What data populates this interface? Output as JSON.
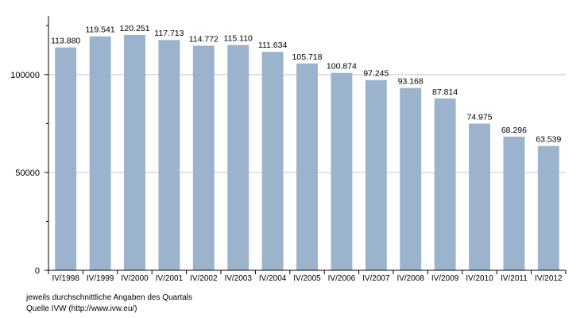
{
  "chart_data": {
    "type": "bar",
    "categories": [
      "IV/1998",
      "IV/1999",
      "IV/2000",
      "IV/2001",
      "IV/2002",
      "IV/2003",
      "IV/2004",
      "IV/2005",
      "IV/2006",
      "IV/2007",
      "IV/2008",
      "IV/2009",
      "IV/2010",
      "IV/2011",
      "IV/2012"
    ],
    "values": [
      113880,
      119541,
      120251,
      117713,
      114772,
      115110,
      111634,
      105718,
      100874,
      97245,
      93168,
      87814,
      74975,
      68296,
      63539
    ],
    "data_labels": [
      "113.880",
      "119.541",
      "120.251",
      "117.713",
      "114.772",
      "115.110",
      "111.634",
      "105.718",
      "100.874",
      "97.245",
      "93.168",
      "87.814",
      "74.975",
      "68.296",
      "63.539"
    ],
    "y_ticks": [
      0,
      50000,
      100000
    ],
    "y_tick_labels": [
      "0",
      "50000",
      "100000"
    ],
    "ylim": [
      0,
      130000
    ],
    "grid": true,
    "bar_color": "#9bb3cc",
    "grid_color": "#c8c8c8"
  },
  "notes": {
    "line1": "jeweils durchschnittliche Angaben des Quartals",
    "line2": "Quelle IVW (http://www.ivw.eu/)"
  }
}
